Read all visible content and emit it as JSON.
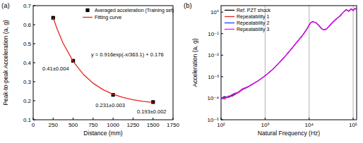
{
  "chart_data": [
    {
      "type": "scatter",
      "title": "(a)",
      "x_label": "Distance (mm)",
      "y_label": "Peak-to-peak Acceleration (a, g)",
      "xlim": [
        0,
        1750
      ],
      "ylim": [
        0.1,
        0.7
      ],
      "xticks": [
        0,
        250,
        500,
        750,
        1000,
        1250,
        1500,
        1750
      ],
      "yticks": [
        0.1,
        0.2,
        0.3,
        0.4,
        0.5,
        0.6,
        0.7
      ],
      "legend": "upper right",
      "annotations": [
        "y = 0.916exp(-x/363.1) + 0.176"
      ],
      "series": [
        {
          "name": "Averaged acceleration (Training set)",
          "type": "scatter",
          "color": "#000000",
          "marker": "square",
          "x": [
            250,
            500,
            1000,
            1500
          ],
          "values": [
            0.636,
            0.41,
            0.231,
            0.193
          ],
          "errors": [
            0.005,
            0.004,
            0.003,
            0.002
          ],
          "value_labels": [
            null,
            "0.41±0.004",
            "0.231±0.003",
            "0.193±0.002"
          ]
        },
        {
          "name": "Fitting curve",
          "type": "line",
          "color": "#e8241c",
          "x": [
            250,
            300,
            375,
            500,
            625,
            750,
            875,
            1000,
            1125,
            1250,
            1375,
            1500
          ],
          "values": [
            0.636,
            0.577,
            0.502,
            0.407,
            0.34,
            0.292,
            0.258,
            0.234,
            0.217,
            0.205,
            0.197,
            0.191
          ]
        }
      ]
    },
    {
      "type": "line",
      "title": "(b)",
      "x_label": "Natural Frequency (Hz)",
      "y_label": "Acceleration (a, g)",
      "log": true,
      "grid": "x",
      "legend": "upper left",
      "xlim": [
        100,
        120000
      ],
      "ylim": [
        1e-05,
        2
      ],
      "xticks": [
        {
          "value": 100,
          "label": "10²"
        },
        {
          "value": 1000,
          "label": "10³"
        },
        {
          "value": 10000,
          "label": "10⁴"
        },
        {
          "value": 100000,
          "label": "10⁵"
        }
      ],
      "yticks": [
        {
          "value": 1e-05,
          "label": "10⁻⁵"
        },
        {
          "value": 0.0001,
          "label": "10⁻⁴"
        },
        {
          "value": 0.001,
          "label": "10⁻³"
        },
        {
          "value": 0.01,
          "label": "10⁻²"
        },
        {
          "value": 0.1,
          "label": "10⁻¹"
        },
        {
          "value": 1,
          "label": "10⁰"
        }
      ],
      "x": [
        100,
        120,
        150,
        180,
        200,
        250,
        300,
        350,
        400,
        500,
        700,
        1000,
        1500,
        2000,
        3000,
        4000,
        5000,
        6000,
        7000,
        8000,
        9000,
        10000,
        11000,
        12000,
        14000,
        16000,
        18000,
        20000,
        23000,
        26000,
        30000,
        35000,
        40000,
        50000,
        60000,
        70000,
        80000,
        90000,
        100000,
        110000,
        120000
      ],
      "series": [
        {
          "name": "Ref. PZT shock",
          "color": "#000000",
          "values": [
            0.0001,
            0.00012,
            0.00011,
            0.00014,
            0.00015,
            0.00019,
            0.00026,
            0.00029,
            0.00033,
            0.00043,
            0.00065,
            0.0011,
            0.0022,
            0.004,
            0.01,
            0.02,
            0.035,
            0.055,
            0.08,
            0.12,
            0.17,
            0.25,
            0.33,
            0.36,
            0.33,
            0.26,
            0.2,
            0.16,
            0.15,
            0.18,
            0.25,
            0.35,
            0.45,
            0.65,
            1.0,
            1.3,
            1.1,
            1.4,
            1.2,
            1.5,
            1.3
          ]
        },
        {
          "name": "Repeatability 1",
          "color": "#e8241c",
          "values": [
            0.00011,
            0.0001,
            0.00013,
            0.00012,
            0.00016,
            0.00018,
            0.00024,
            0.0003,
            0.00034,
            0.00042,
            0.00065,
            0.0011,
            0.0022,
            0.004,
            0.01,
            0.02,
            0.035,
            0.055,
            0.08,
            0.12,
            0.17,
            0.25,
            0.33,
            0.36,
            0.33,
            0.26,
            0.2,
            0.16,
            0.15,
            0.18,
            0.25,
            0.35,
            0.45,
            0.65,
            1.0,
            1.3,
            1.1,
            1.4,
            1.2,
            1.5,
            1.3
          ]
        },
        {
          "name": "Repeatability 2",
          "color": "#1f3fff",
          "values": [
            9e-05,
            0.00011,
            0.00012,
            0.00013,
            0.00014,
            0.0002,
            0.00025,
            0.00028,
            0.00032,
            0.00044,
            0.00065,
            0.0011,
            0.0022,
            0.004,
            0.01,
            0.02,
            0.035,
            0.055,
            0.08,
            0.12,
            0.17,
            0.25,
            0.33,
            0.36,
            0.33,
            0.26,
            0.2,
            0.16,
            0.15,
            0.18,
            0.25,
            0.35,
            0.45,
            0.65,
            1.0,
            1.3,
            1.1,
            1.4,
            1.2,
            1.5,
            1.3
          ]
        },
        {
          "name": "Repeatability 3",
          "color": "#ff00ff",
          "values": [
            0.0001,
            9e-05,
            0.00012,
            0.00015,
            0.00017,
            0.00019,
            0.00027,
            0.00031,
            0.00033,
            0.00043,
            0.00065,
            0.0011,
            0.0022,
            0.004,
            0.01,
            0.02,
            0.035,
            0.055,
            0.08,
            0.12,
            0.17,
            0.25,
            0.33,
            0.36,
            0.33,
            0.26,
            0.2,
            0.16,
            0.15,
            0.18,
            0.25,
            0.35,
            0.45,
            0.65,
            1.0,
            1.3,
            1.1,
            1.4,
            1.2,
            1.5,
            1.3
          ]
        }
      ]
    }
  ]
}
